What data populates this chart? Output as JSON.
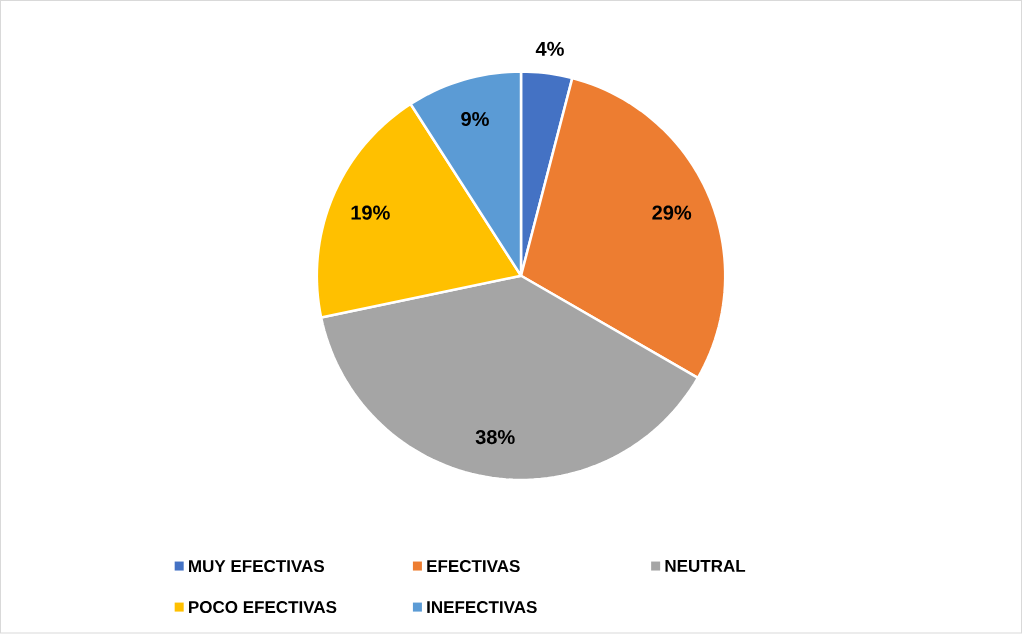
{
  "chart_data": {
    "type": "pie",
    "categories": [
      "MUY EFECTIVAS",
      "EFECTIVAS",
      "NEUTRAL",
      "POCO EFECTIVAS",
      "INEFECTIVAS"
    ],
    "values": [
      4,
      29,
      38,
      19,
      9
    ],
    "value_labels": [
      "4%",
      "29%",
      "38%",
      "19%",
      "9%"
    ],
    "colors": [
      "#4472c4",
      "#ed7d31",
      "#a5a5a5",
      "#ffc000",
      "#5b9bd5"
    ],
    "legend": "bottom"
  }
}
